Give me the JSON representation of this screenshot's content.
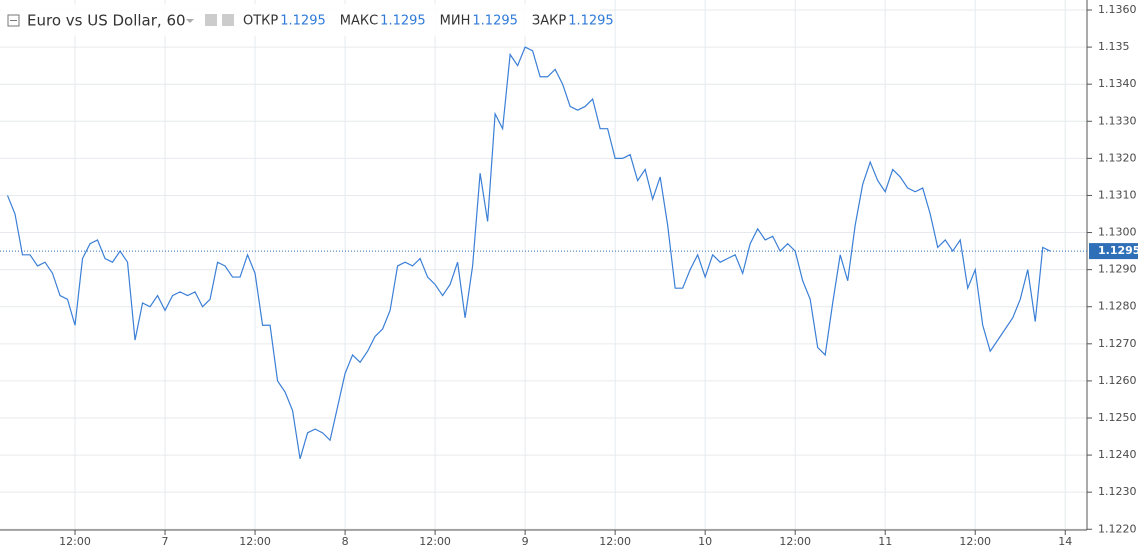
{
  "chart_data": {
    "type": "line",
    "title": "Euro vs US Dollar, 60",
    "ohlc": [
      {
        "name": "ОТКР",
        "value": 1.1295
      },
      {
        "name": "МАКС",
        "value": 1.1295
      },
      {
        "name": "МИН",
        "value": 1.1295
      },
      {
        "name": "ЗАКР",
        "value": 1.1295
      }
    ],
    "last_price": 1.1295,
    "x": [
      3,
      4,
      5,
      6,
      7,
      8,
      9,
      10,
      11,
      12,
      13,
      14,
      15,
      16,
      17,
      18,
      19,
      20,
      21,
      22,
      23,
      24,
      25,
      26,
      27,
      28,
      29,
      30,
      31,
      32,
      33,
      34,
      35,
      36,
      37,
      38,
      39,
      40,
      41,
      42,
      43,
      44,
      45,
      46,
      47,
      48,
      49,
      50,
      51,
      52,
      53,
      54,
      55,
      56,
      57,
      58,
      59,
      60,
      61,
      62,
      63,
      64,
      65,
      66,
      67,
      68,
      69,
      70,
      71,
      72,
      73,
      74,
      75,
      76,
      77,
      78,
      79,
      80,
      81,
      82,
      83,
      84,
      85,
      86,
      87,
      88,
      89,
      90,
      91,
      92,
      93,
      94,
      95,
      96,
      97,
      98,
      99,
      100,
      101,
      102,
      103,
      104,
      105,
      106,
      107,
      108,
      109,
      110,
      111,
      112,
      113,
      114,
      115,
      116,
      117,
      118,
      119,
      120,
      121,
      122,
      123,
      124,
      125,
      126,
      127,
      128,
      129,
      130,
      131,
      132,
      133,
      134,
      135,
      136,
      137,
      138,
      139,
      140,
      141,
      142
    ],
    "series": [
      {
        "color": "#3b7fd6",
        "values": [
          1.131,
          1.1305,
          1.1294,
          1.1294,
          1.1291,
          1.1292,
          1.1289,
          1.1283,
          1.1282,
          1.1275,
          1.1293,
          1.1297,
          1.1298,
          1.1293,
          1.1292,
          1.1295,
          1.1292,
          1.1271,
          1.1281,
          1.128,
          1.1283,
          1.1279,
          1.1283,
          1.1284,
          1.1283,
          1.1284,
          1.128,
          1.1282,
          1.1292,
          1.1291,
          1.1288,
          1.1288,
          1.1294,
          1.1289,
          1.1275,
          1.1275,
          1.126,
          1.1257,
          1.1252,
          1.1239,
          1.1246,
          1.1247,
          1.1246,
          1.1244,
          1.1253,
          1.1262,
          1.1267,
          1.1265,
          1.1268,
          1.1272,
          1.1274,
          1.1279,
          1.1291,
          1.1292,
          1.1291,
          1.1293,
          1.1288,
          1.1286,
          1.1283,
          1.1286,
          1.1292,
          1.1277,
          1.1291,
          1.1316,
          1.1303,
          1.1332,
          1.1328,
          1.1348,
          1.1345,
          1.135,
          1.1349,
          1.1342,
          1.1342,
          1.1344,
          1.134,
          1.1334,
          1.1333,
          1.1334,
          1.1336,
          1.1328,
          1.1328,
          1.132,
          1.132,
          1.1321,
          1.1314,
          1.1317,
          1.1309,
          1.1315,
          1.1302,
          1.1285,
          1.1285,
          1.129,
          1.1294,
          1.1288,
          1.1294,
          1.1292,
          1.1293,
          1.1294,
          1.1289,
          1.1297,
          1.1301,
          1.1298,
          1.1299,
          1.1295,
          1.1297,
          1.1295,
          1.1287,
          1.1282,
          1.1269,
          1.1267,
          1.1281,
          1.1294,
          1.1287,
          1.1302,
          1.1313,
          1.1319,
          1.1314,
          1.1311,
          1.1317,
          1.1315,
          1.1312,
          1.1311,
          1.1312,
          1.1305,
          1.1296,
          1.1298,
          1.1295,
          1.1298,
          1.1285,
          1.129,
          1.1275,
          1.1268,
          1.1271,
          1.1274,
          1.1277,
          1.1282,
          1.129,
          1.1276,
          1.1296,
          1.1295
        ]
      }
    ],
    "xlim": [
      2,
      146.9
    ],
    "ylim": [
      1.12198,
      1.13627
    ],
    "xticks": [
      {
        "value": 12,
        "label": "12:00"
      },
      {
        "value": 24,
        "label": "7"
      },
      {
        "value": 36,
        "label": "12:00"
      },
      {
        "value": 48,
        "label": "8"
      },
      {
        "value": 60,
        "label": "12:00"
      },
      {
        "value": 72,
        "label": "9"
      },
      {
        "value": 84,
        "label": "12:00"
      },
      {
        "value": 96,
        "label": "10"
      },
      {
        "value": 108,
        "label": "12:00"
      },
      {
        "value": 120,
        "label": "11"
      },
      {
        "value": 132,
        "label": "12:00"
      },
      {
        "value": 144,
        "label": "14"
      }
    ],
    "yticks": [
      {
        "value": 1.136,
        "label": "1.1360"
      },
      1.135,
      {
        "value": 1.134,
        "label": "1.1340"
      },
      {
        "value": 1.133,
        "label": "1.1330"
      },
      {
        "value": 1.132,
        "label": "1.1320"
      },
      {
        "value": 1.131,
        "label": "1.1310"
      },
      {
        "value": 1.13,
        "label": "1.1300"
      },
      {
        "value": 1.129,
        "label": "1.1290"
      },
      {
        "value": 1.128,
        "label": "1.1280"
      },
      {
        "value": 1.127,
        "label": "1.1270"
      },
      {
        "value": 1.126,
        "label": "1.1260"
      },
      {
        "value": 1.125,
        "label": "1.1250"
      },
      {
        "value": 1.124,
        "label": "1.1240"
      },
      {
        "value": 1.123,
        "label": "1.1230"
      },
      {
        "value": 1.122,
        "label": "1.1220"
      }
    ],
    "grid": true
  }
}
